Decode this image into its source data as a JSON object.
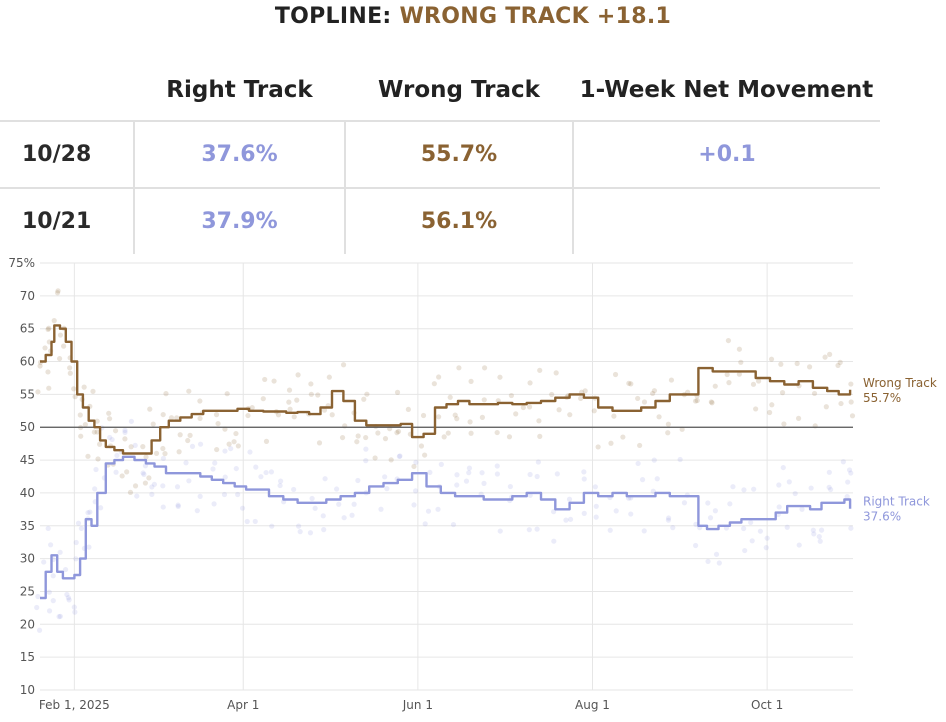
{
  "header": {
    "title_prefix": "TOPLINE: ",
    "title_accent": "WRONG TRACK +18.1"
  },
  "table": {
    "columns": [
      "Right Track",
      "Wrong Track",
      "1-Week Net Movement"
    ],
    "rows": [
      {
        "date": "10/28",
        "right": "37.6%",
        "wrong": "55.7%",
        "net": "+0.1"
      },
      {
        "date": "10/21",
        "right": "37.9%",
        "wrong": "56.1%",
        "net": ""
      }
    ]
  },
  "colors": {
    "right": "#8f97db",
    "wrong": "#8a6232",
    "refline": "#555555",
    "grid": "#e6e6e6"
  },
  "chart_data": {
    "type": "line",
    "title": "",
    "xlabel": "",
    "ylabel": "",
    "ylim": [
      10,
      75
    ],
    "yticks": [
      10,
      15,
      20,
      25,
      30,
      35,
      40,
      45,
      50,
      55,
      60,
      65,
      70,
      75
    ],
    "ytick_labels": [
      "10",
      "15",
      "20",
      "25",
      "30",
      "35",
      "40",
      "45",
      "50",
      "55",
      "60",
      "65",
      "70",
      "75%"
    ],
    "xlim": [
      "2025-01-20",
      "2025-10-31"
    ],
    "xticks": [
      {
        "date": "2025-02-01",
        "label": "Feb 1, 2025"
      },
      {
        "date": "2025-04-01",
        "label": "Apr 1"
      },
      {
        "date": "2025-06-01",
        "label": "Jun 1"
      },
      {
        "date": "2025-08-01",
        "label": "Aug 1"
      },
      {
        "date": "2025-10-01",
        "label": "Oct 1"
      }
    ],
    "reference_line": 50,
    "grid": true,
    "series": [
      {
        "name": "Wrong Track",
        "end_label": "55.7%",
        "x": [
          "2025-01-20",
          "2025-01-22",
          "2025-01-24",
          "2025-01-25",
          "2025-01-27",
          "2025-01-29",
          "2025-01-31",
          "2025-02-02",
          "2025-02-04",
          "2025-02-06",
          "2025-02-08",
          "2025-02-10",
          "2025-02-12",
          "2025-02-15",
          "2025-02-18",
          "2025-02-21",
          "2025-02-25",
          "2025-02-28",
          "2025-03-03",
          "2025-03-06",
          "2025-03-10",
          "2025-03-14",
          "2025-03-18",
          "2025-03-22",
          "2025-03-26",
          "2025-03-30",
          "2025-04-03",
          "2025-04-08",
          "2025-04-12",
          "2025-04-16",
          "2025-04-20",
          "2025-04-24",
          "2025-04-28",
          "2025-05-02",
          "2025-05-06",
          "2025-05-10",
          "2025-05-14",
          "2025-05-18",
          "2025-05-22",
          "2025-05-26",
          "2025-05-30",
          "2025-06-03",
          "2025-06-07",
          "2025-06-11",
          "2025-06-15",
          "2025-06-19",
          "2025-06-24",
          "2025-06-29",
          "2025-07-04",
          "2025-07-09",
          "2025-07-14",
          "2025-07-19",
          "2025-07-24",
          "2025-07-29",
          "2025-08-03",
          "2025-08-08",
          "2025-08-13",
          "2025-08-18",
          "2025-08-23",
          "2025-08-28",
          "2025-09-02",
          "2025-09-07",
          "2025-09-12",
          "2025-09-17",
          "2025-09-22",
          "2025-09-27",
          "2025-10-02",
          "2025-10-07",
          "2025-10-12",
          "2025-10-17",
          "2025-10-22",
          "2025-10-26",
          "2025-10-30"
        ],
        "values": [
          60,
          61,
          63,
          65.5,
          65,
          63,
          60,
          55,
          53,
          51,
          50,
          48,
          47,
          46.5,
          46,
          46,
          46,
          48,
          50,
          51,
          51.5,
          52,
          52.5,
          52.5,
          52.5,
          52.8,
          52.5,
          52.4,
          52.4,
          52.2,
          52.3,
          52,
          53,
          55.5,
          54,
          51,
          50.3,
          50.3,
          50.3,
          50.5,
          48.5,
          49,
          53,
          53.5,
          54,
          53.5,
          53.5,
          53.7,
          53.5,
          53.7,
          54,
          54.5,
          55,
          54.5,
          53,
          52.5,
          52.5,
          53,
          54,
          55,
          55,
          59,
          58.5,
          58.5,
          58.5,
          57.5,
          57,
          56.5,
          57,
          56,
          55.5,
          55,
          55.7
        ]
      },
      {
        "name": "Right Track",
        "end_label": "37.6%",
        "x": [
          "2025-01-20",
          "2025-01-22",
          "2025-01-24",
          "2025-01-26",
          "2025-01-28",
          "2025-01-30",
          "2025-02-01",
          "2025-02-03",
          "2025-02-05",
          "2025-02-07",
          "2025-02-09",
          "2025-02-12",
          "2025-02-15",
          "2025-02-18",
          "2025-02-22",
          "2025-02-26",
          "2025-03-01",
          "2025-03-05",
          "2025-03-09",
          "2025-03-13",
          "2025-03-17",
          "2025-03-21",
          "2025-03-25",
          "2025-03-29",
          "2025-04-02",
          "2025-04-06",
          "2025-04-10",
          "2025-04-15",
          "2025-04-20",
          "2025-04-25",
          "2025-04-30",
          "2025-05-05",
          "2025-05-10",
          "2025-05-15",
          "2025-05-20",
          "2025-05-25",
          "2025-05-30",
          "2025-06-04",
          "2025-06-09",
          "2025-06-14",
          "2025-06-19",
          "2025-06-24",
          "2025-06-29",
          "2025-07-04",
          "2025-07-09",
          "2025-07-14",
          "2025-07-19",
          "2025-07-24",
          "2025-07-29",
          "2025-08-03",
          "2025-08-08",
          "2025-08-13",
          "2025-08-18",
          "2025-08-23",
          "2025-08-28",
          "2025-09-02",
          "2025-09-07",
          "2025-09-10",
          "2025-09-14",
          "2025-09-18",
          "2025-09-22",
          "2025-09-26",
          "2025-09-30",
          "2025-10-04",
          "2025-10-08",
          "2025-10-12",
          "2025-10-16",
          "2025-10-20",
          "2025-10-24",
          "2025-10-28",
          "2025-10-30"
        ],
        "values": [
          24,
          28,
          30.5,
          28,
          27,
          27,
          27.5,
          30,
          36,
          35,
          40,
          44.5,
          45,
          45.5,
          45,
          44.5,
          44,
          43,
          43,
          43,
          42.5,
          42,
          41.5,
          41,
          40.5,
          40.5,
          39.5,
          39,
          38.5,
          38.5,
          39,
          39.5,
          40,
          41,
          41.5,
          42,
          43,
          41,
          40,
          39.5,
          39.5,
          39,
          39,
          39.5,
          40,
          39,
          37.5,
          38.5,
          40,
          39.5,
          40,
          39.5,
          39.5,
          40,
          39.5,
          39.5,
          35,
          34.5,
          35,
          35.5,
          36,
          36,
          36,
          37,
          38,
          38,
          37.5,
          38.5,
          38.5,
          39,
          37.6
        ]
      }
    ]
  }
}
